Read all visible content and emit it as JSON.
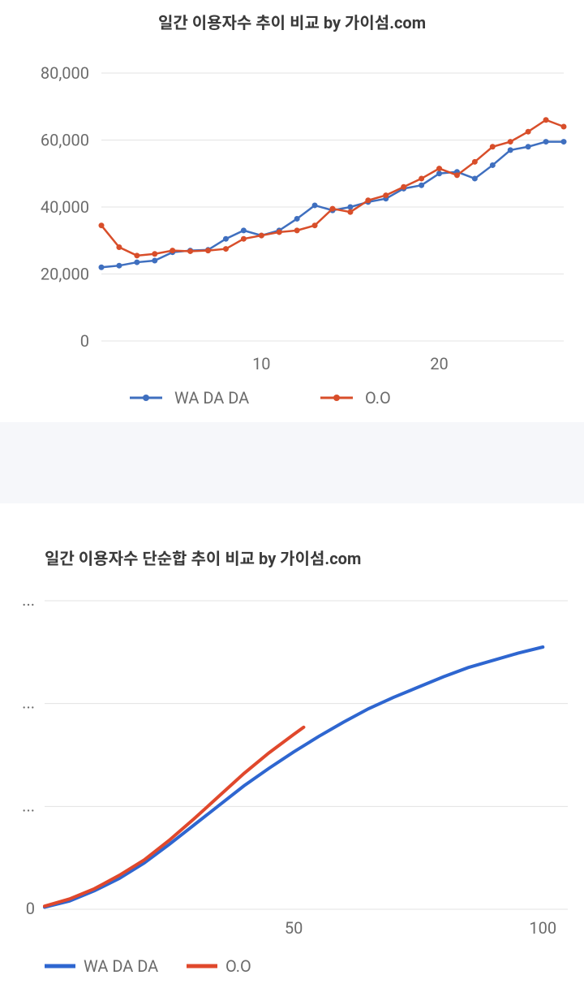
{
  "chart1": {
    "type": "line",
    "title": "일간 이용자수 추이 비교 by 가이섬.com",
    "title_fontsize": 20,
    "title_color": "#3a3a3a",
    "background_color": "#ffffff",
    "grid_color": "#e3e3e3",
    "axis_font_color": "#6b6b6b",
    "axis_fontsize": 20,
    "x_ticks": [
      10,
      20
    ],
    "x_range": [
      1,
      27
    ],
    "y_ticks": [
      0,
      20000,
      40000,
      60000,
      80000
    ],
    "y_tick_labels": [
      "0",
      "20,000",
      "40,000",
      "60,000",
      "80,000"
    ],
    "y_range": [
      0,
      80000
    ],
    "line_width": 2.5,
    "marker_radius": 3.5,
    "series": [
      {
        "name": "WA DA DA",
        "color": "#3f6fbf",
        "x": [
          1,
          2,
          3,
          4,
          5,
          6,
          7,
          8,
          9,
          10,
          11,
          12,
          13,
          14,
          15,
          16,
          17,
          18,
          19,
          20,
          21,
          22,
          23,
          24,
          25,
          26,
          27
        ],
        "y": [
          22000,
          22500,
          23500,
          24000,
          26500,
          27000,
          27200,
          30500,
          33000,
          31500,
          33000,
          36500,
          40500,
          39000,
          40000,
          41500,
          42500,
          45500,
          46500,
          50000,
          50500,
          48500,
          52500,
          57000,
          58000,
          59500,
          59500
        ]
      },
      {
        "name": "O.O",
        "color": "#d84e2a",
        "x": [
          1,
          2,
          3,
          4,
          5,
          6,
          7,
          8,
          9,
          10,
          11,
          12,
          13,
          14,
          15,
          16,
          17,
          18,
          19,
          20,
          21,
          22,
          23,
          24,
          25,
          26,
          27
        ],
        "y": [
          34500,
          28000,
          25500,
          26000,
          27000,
          26800,
          27000,
          27500,
          30500,
          31500,
          32500,
          33000,
          34500,
          39500,
          38500,
          42000,
          43500,
          46000,
          48500,
          51500,
          49500,
          53500,
          58000,
          59500,
          62500,
          66000,
          64000
        ]
      }
    ],
    "legend": [
      "WA DA DA",
      "O.O"
    ]
  },
  "chart2": {
    "type": "line",
    "title": "일간 이용자수 단순합 추이 비교 by 가이섬.com",
    "title_fontsize": 20,
    "title_color": "#3a3a3a",
    "background_color": "#ffffff",
    "grid_color": "#e3e3e3",
    "axis_font_color": "#6b6b6b",
    "axis_fontsize": 20,
    "x_ticks": [
      50,
      100
    ],
    "x_tick_labels": [
      "50",
      "100"
    ],
    "x_range": [
      0,
      105
    ],
    "y_ticks": [
      0,
      1,
      2,
      3
    ],
    "y_tick_labels": [
      "0",
      "...",
      "...",
      "..."
    ],
    "y_range": [
      0,
      3.0
    ],
    "line_width": 4,
    "series": [
      {
        "name": "WA DA DA",
        "color": "#2e66d0",
        "x": [
          0,
          5,
          10,
          15,
          20,
          25,
          30,
          35,
          40,
          45,
          50,
          55,
          60,
          65,
          70,
          75,
          80,
          85,
          90,
          95,
          100
        ],
        "y": [
          0.02,
          0.08,
          0.18,
          0.3,
          0.45,
          0.63,
          0.82,
          1.01,
          1.2,
          1.37,
          1.53,
          1.68,
          1.82,
          1.95,
          2.06,
          2.16,
          2.26,
          2.35,
          2.42,
          2.49,
          2.55
        ]
      },
      {
        "name": "O.O",
        "color": "#e0482c",
        "x": [
          0,
          5,
          10,
          15,
          20,
          25,
          30,
          35,
          40,
          45,
          50,
          52
        ],
        "y": [
          0.03,
          0.1,
          0.2,
          0.33,
          0.48,
          0.67,
          0.88,
          1.1,
          1.32,
          1.52,
          1.7,
          1.77
        ]
      }
    ],
    "legend": [
      "WA DA DA",
      "O.O"
    ]
  }
}
